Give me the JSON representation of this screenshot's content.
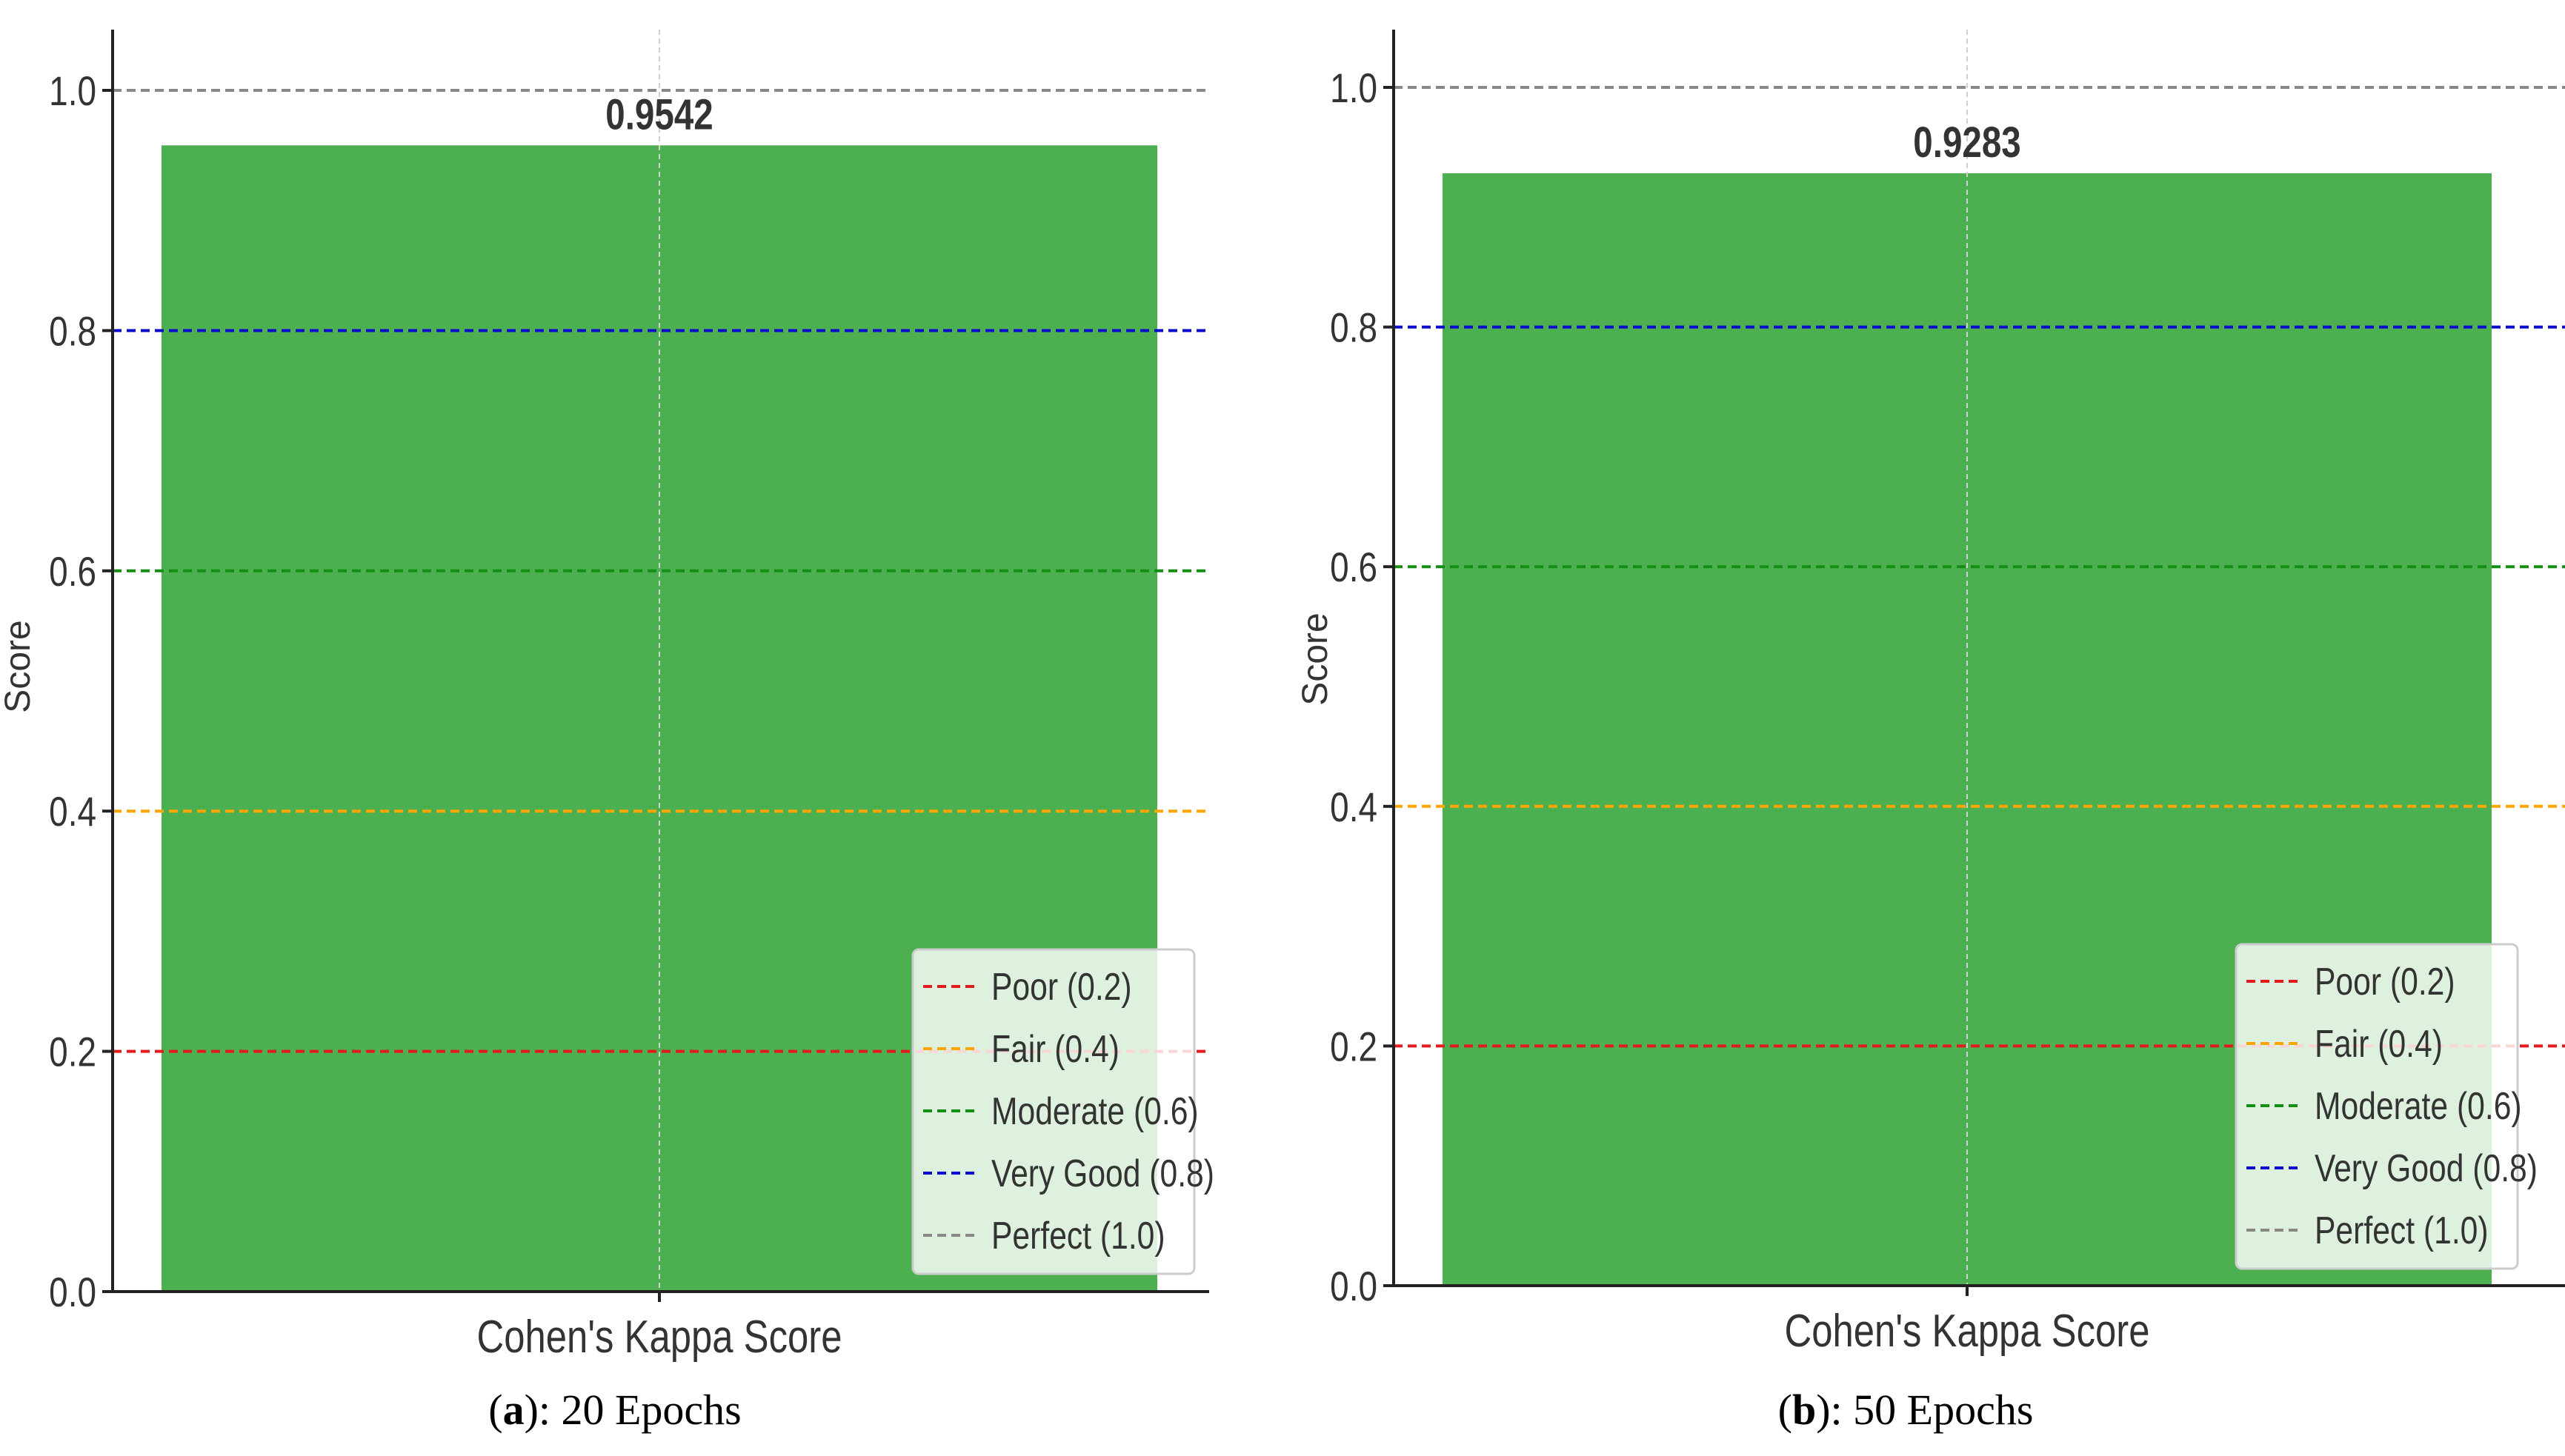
{
  "colors": {
    "bar": "#4caf50",
    "axis": "#222222",
    "grid": "#d0d0d0",
    "text": "#333333"
  },
  "thresholds": [
    {
      "label": "Poor (0.2)",
      "value": 0.2,
      "color": "#e41a1c"
    },
    {
      "label": "Fair (0.4)",
      "value": 0.4,
      "color": "#ffa500"
    },
    {
      "label": "Moderate (0.6)",
      "value": 0.6,
      "color": "#138f13"
    },
    {
      "label": "Very Good (0.8)",
      "value": 0.8,
      "color": "#0b0bd0"
    },
    {
      "label": "Perfect (1.0)",
      "value": 1.0,
      "color": "#888888"
    }
  ],
  "chart_data": [
    {
      "type": "bar",
      "categories": [
        "Cohen's Kappa Score"
      ],
      "values": [
        0.9542
      ],
      "value_label": "0.9542",
      "ylabel": "Score",
      "ylim": [
        0,
        1.05
      ],
      "yticks": [
        "0.0",
        "0.2",
        "0.4",
        "0.6",
        "0.8",
        "1.0"
      ],
      "grid": "x only",
      "legend": "bottom-right",
      "caption": {
        "letter": "a",
        "text": ": 20 Epochs"
      }
    },
    {
      "type": "bar",
      "categories": [
        "Cohen's Kappa Score"
      ],
      "values": [
        0.9283
      ],
      "value_label": "0.9283",
      "ylabel": "Score",
      "ylim": [
        0,
        1.05
      ],
      "yticks": [
        "0.0",
        "0.2",
        "0.4",
        "0.6",
        "0.8",
        "1.0"
      ],
      "grid": "x only",
      "legend": "bottom-right",
      "caption": {
        "letter": "b",
        "text": ": 50 Epochs"
      }
    }
  ]
}
